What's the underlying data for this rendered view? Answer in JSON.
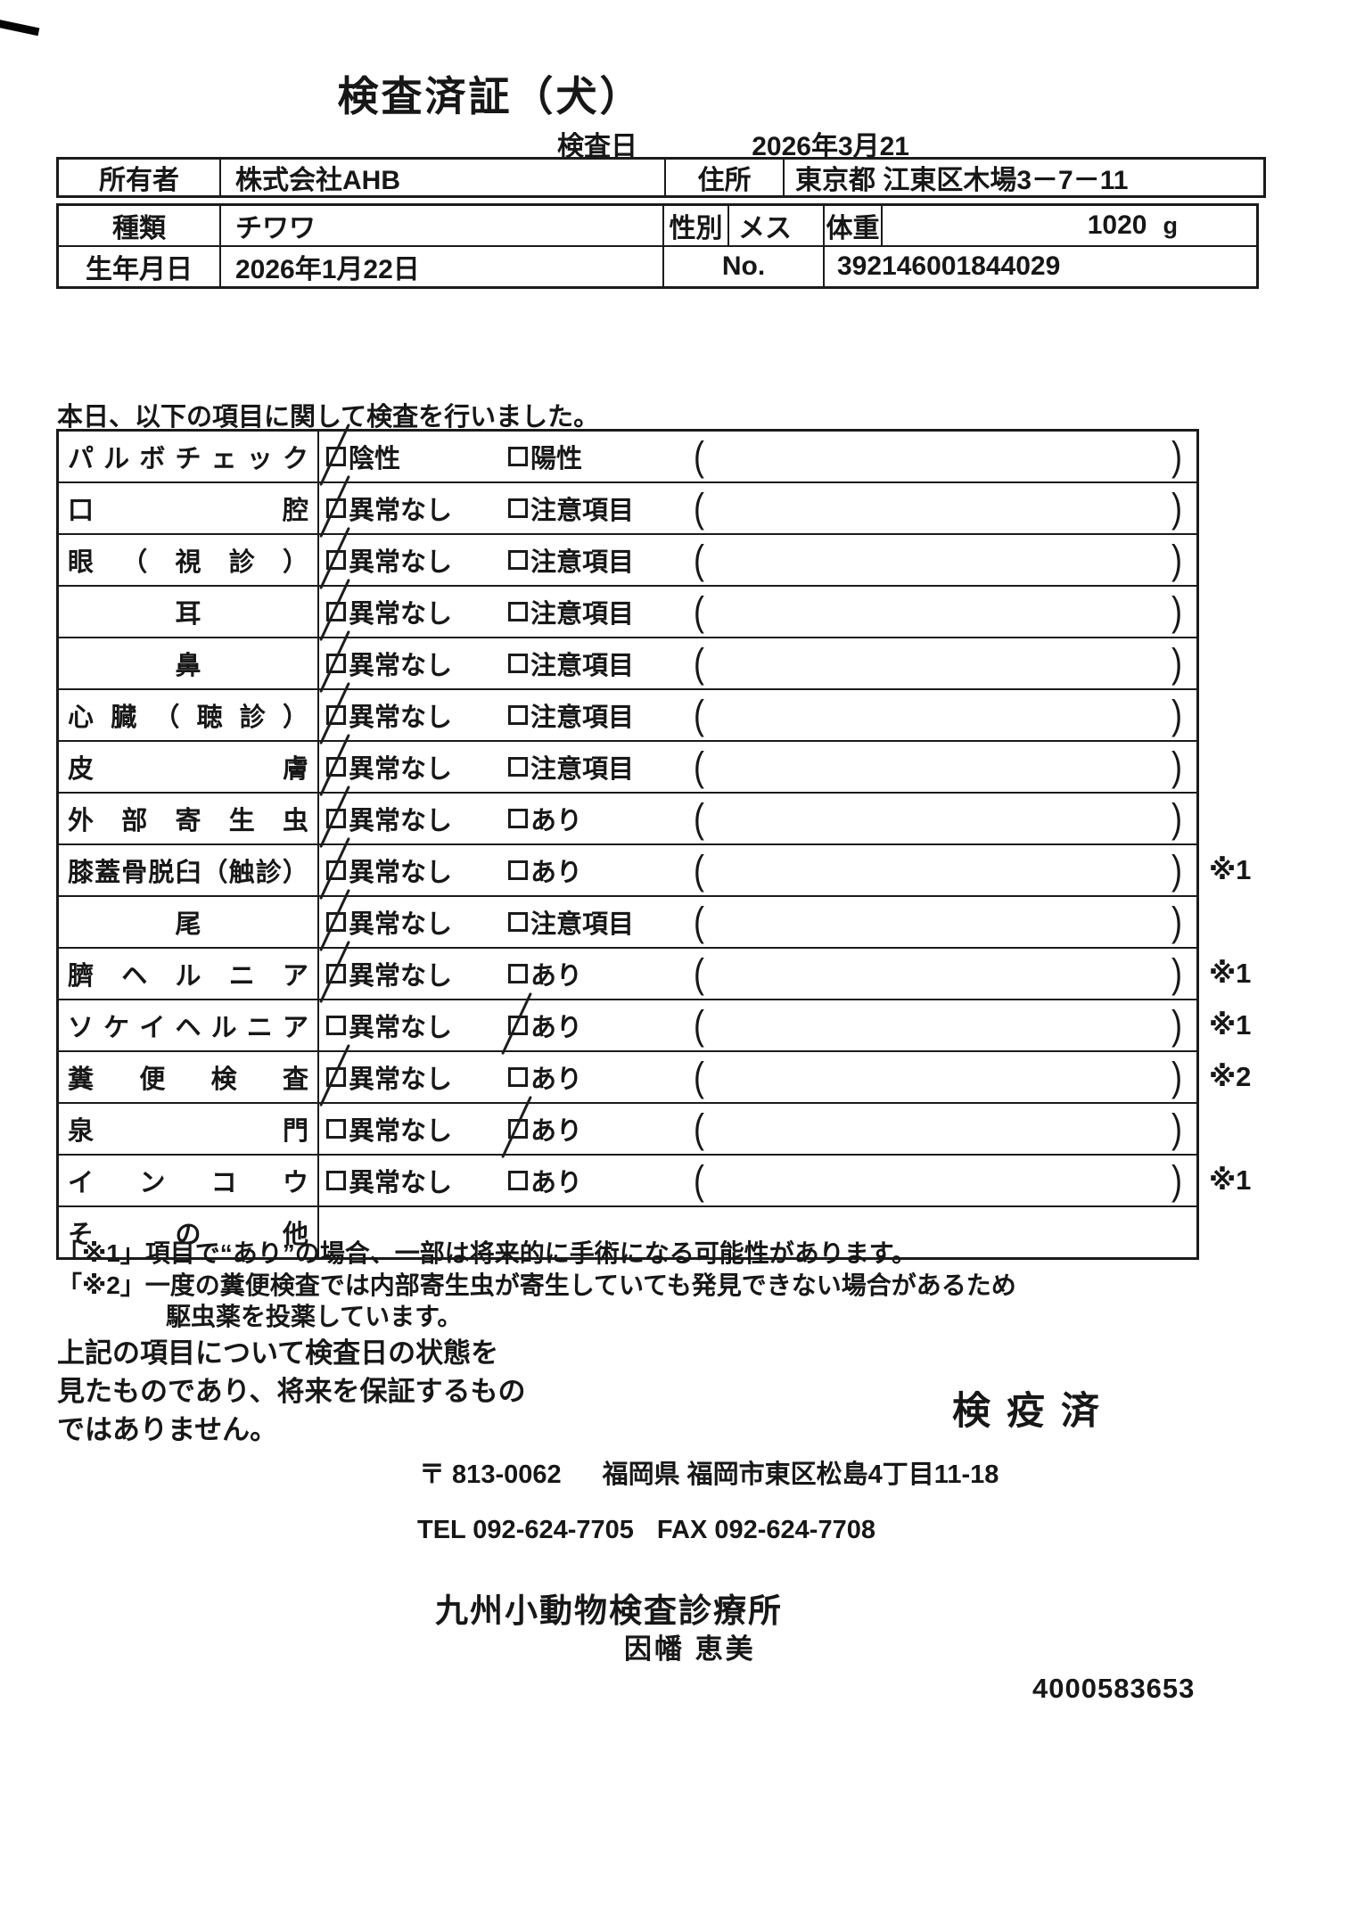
{
  "header": {
    "title": "検査済証（犬）",
    "inspection_date_label": "検査日",
    "inspection_date": "2026年3月21日"
  },
  "owner": {
    "owner_label": "所有者",
    "owner_name": "株式会社AHB",
    "address_label": "住所",
    "address": "東京都 江東区木場3－7－11"
  },
  "pet": {
    "breed_label": "種類",
    "breed": "チワワ",
    "sex_label": "性別",
    "sex": "メス",
    "weight_label": "体重",
    "weight_value": "1020",
    "weight_unit": "g",
    "birthdate_label": "生年月日",
    "birthdate": "2026年1月22日",
    "no_label": "No.",
    "no_value": "392146001844029"
  },
  "intro_text": "本日、以下の項目に関して検査を行いました。",
  "checklist": {
    "paren_open": "(",
    "paren_close": ")",
    "rows": [
      {
        "item": "パルボチェック",
        "opt1": "陰性",
        "opt2": "陽性",
        "checked": "opt1",
        "note": ""
      },
      {
        "item": "口腔",
        "opt1": "異常なし",
        "opt2": "注意項目",
        "checked": "opt1",
        "note": ""
      },
      {
        "item": "眼（視診）",
        "opt1": "異常なし",
        "opt2": "注意項目",
        "checked": "opt1",
        "note": ""
      },
      {
        "item": "耳",
        "opt1": "異常なし",
        "opt2": "注意項目",
        "checked": "opt1",
        "note": ""
      },
      {
        "item": "鼻",
        "opt1": "異常なし",
        "opt2": "注意項目",
        "checked": "opt1",
        "note": ""
      },
      {
        "item": "心臓（聴診）",
        "opt1": "異常なし",
        "opt2": "注意項目",
        "checked": "opt1",
        "note": ""
      },
      {
        "item": "皮膚",
        "opt1": "異常なし",
        "opt2": "注意項目",
        "checked": "opt1",
        "note": ""
      },
      {
        "item": "外部寄生虫",
        "opt1": "異常なし",
        "opt2": "あり",
        "checked": "opt1",
        "note": ""
      },
      {
        "item": "膝蓋骨脱臼（触診）",
        "opt1": "異常なし",
        "opt2": "あり",
        "checked": "opt1",
        "note": "※1"
      },
      {
        "item": "尾",
        "opt1": "異常なし",
        "opt2": "注意項目",
        "checked": "opt1",
        "note": ""
      },
      {
        "item": "臍ヘルニア",
        "opt1": "異常なし",
        "opt2": "あり",
        "checked": "opt1",
        "note": "※1"
      },
      {
        "item": "ソケイヘルニア",
        "opt1": "異常なし",
        "opt2": "あり",
        "checked": "opt2",
        "note": "※1"
      },
      {
        "item": "糞便検査",
        "opt1": "異常なし",
        "opt2": "あり",
        "checked": "opt1",
        "note": "※2"
      },
      {
        "item": "泉門",
        "opt1": "異常なし",
        "opt2": "あり",
        "checked": "opt2",
        "note": ""
      },
      {
        "item": "インコウ",
        "opt1": "異常なし",
        "opt2": "あり",
        "checked": "",
        "note": "※1"
      },
      {
        "item": "その他",
        "opt1": "",
        "opt2": "",
        "checked": "",
        "note": ""
      }
    ]
  },
  "notes": {
    "note1": "「※1」項目で“あり”の場合、一部は将来的に手術になる可能性があります。",
    "note2": "「※2」一度の糞便検査では内部寄生虫が寄生していても発見できない場合があるため",
    "note2_cont": "駆虫薬を投薬しています。"
  },
  "disclaimer": {
    "line1": "上記の項目について検査日の状態を",
    "line2": "見たものであり、将来を保証するもの",
    "line3": "ではありません。"
  },
  "stamp_text": "検疫済",
  "clinic": {
    "postal": "〒 813-0062",
    "address": "福岡県 福岡市東区松島4丁目11-18",
    "tel": "TEL 092-624-7705",
    "fax": "FAX 092-624-7708",
    "name": "九州小動物検査診療所",
    "vet_name": "因幡 恵美",
    "serial": "4000583653"
  }
}
